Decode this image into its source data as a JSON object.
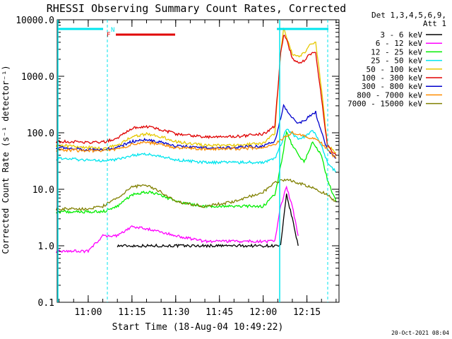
{
  "chart_data": {
    "type": "line",
    "title": "RHESSI Observing Summary Count Rates, Corrected",
    "xlabel": "Start Time (18-Aug-04 10:49:22)",
    "ylabel": "Corrected Count Rate (s⁻¹ detector⁻¹)",
    "y_scale": "log",
    "ylim": [
      0.1,
      10000
    ],
    "xlim": [
      "10:49:22",
      "12:26:00"
    ],
    "y_ticks": [
      "0.1",
      "1.0",
      "10.0",
      "100.0",
      "1000.0",
      "10000.0"
    ],
    "x_ticks": [
      "11:00",
      "11:15",
      "11:30",
      "11:45",
      "12:00",
      "12:15"
    ],
    "legend_title_line1": "Det 1,3,4,5,6,9,",
    "legend_title_line2": "Att 1",
    "legend_position": "right",
    "footer_timestamp": "20-Oct-2021 08:04",
    "flags": [
      {
        "label": "N",
        "color": "#00e5ee"
      },
      {
        "label": "F",
        "color": "#e00000"
      }
    ],
    "series": [
      {
        "name": "3 - 6 keV",
        "color": "#000000",
        "x": [
          "11:10",
          "11:18",
          "11:24",
          "11:31",
          "11:46",
          "12:06",
          "12:08",
          "12:10",
          "12:12"
        ],
        "y": [
          1,
          1,
          1,
          1,
          1,
          1,
          8,
          3,
          1
        ]
      },
      {
        "name": "6 - 12 keV",
        "color": "#ff00ff",
        "x": [
          "10:49",
          "11:00",
          "11:05",
          "11:10",
          "11:15",
          "11:20",
          "11:30",
          "11:40",
          "11:50",
          "12:00",
          "12:04",
          "12:06",
          "12:08",
          "12:10",
          "12:12"
        ],
        "y": [
          0.8,
          0.8,
          1.5,
          1.5,
          2.2,
          2.0,
          1.5,
          1.2,
          1.2,
          1.2,
          1.2,
          5,
          11,
          5,
          1.5
        ]
      },
      {
        "name": "12 - 25 keV",
        "color": "#00ee00",
        "x": [
          "10:49",
          "11:00",
          "11:05",
          "11:10",
          "11:15",
          "11:20",
          "11:25",
          "11:30",
          "11:40",
          "11:50",
          "12:00",
          "12:04",
          "12:06",
          "12:08",
          "12:10",
          "12:14",
          "12:17",
          "12:20",
          "12:22",
          "12:25"
        ],
        "y": [
          4,
          4,
          4,
          5,
          8,
          9,
          8,
          6,
          5,
          5,
          5,
          8,
          25,
          100,
          60,
          30,
          70,
          40,
          15,
          6
        ]
      },
      {
        "name": "25 - 50 keV",
        "color": "#00e5ee",
        "x": [
          "10:49",
          "11:00",
          "11:05",
          "11:10",
          "11:15",
          "11:20",
          "11:25",
          "11:30",
          "11:40",
          "11:50",
          "12:00",
          "12:04",
          "12:06",
          "12:08",
          "12:10",
          "12:12",
          "12:14",
          "12:17",
          "12:20",
          "12:22",
          "12:25"
        ],
        "y": [
          35,
          33,
          32,
          34,
          40,
          42,
          38,
          33,
          30,
          30,
          30,
          35,
          60,
          120,
          95,
          80,
          85,
          110,
          60,
          30,
          20
        ]
      },
      {
        "name": "50 - 100 keV",
        "color": "#e6c800",
        "x": [
          "10:49",
          "11:00",
          "11:05",
          "11:10",
          "11:15",
          "11:20",
          "11:25",
          "11:30",
          "11:40",
          "11:50",
          "12:00",
          "12:04",
          "12:06",
          "12:07",
          "12:08",
          "12:10",
          "12:12",
          "12:14",
          "12:16",
          "12:18",
          "12:20",
          "12:22",
          "12:25"
        ],
        "y": [
          60,
          55,
          52,
          60,
          85,
          95,
          85,
          70,
          60,
          60,
          65,
          100,
          2500,
          7000,
          5000,
          2500,
          2200,
          2600,
          3500,
          4000,
          600,
          60,
          45
        ]
      },
      {
        "name": "100 - 300 keV",
        "color": "#e00000",
        "x": [
          "10:49",
          "11:00",
          "11:05",
          "11:10",
          "11:15",
          "11:20",
          "11:25",
          "11:30",
          "11:40",
          "11:50",
          "12:00",
          "12:04",
          "12:06",
          "12:07",
          "12:08",
          "12:10",
          "12:12",
          "12:14",
          "12:16",
          "12:18",
          "12:20",
          "12:22",
          "12:25"
        ],
        "y": [
          70,
          68,
          68,
          80,
          120,
          130,
          115,
          95,
          85,
          85,
          95,
          130,
          2500,
          5500,
          4500,
          2100,
          1700,
          1900,
          2500,
          2700,
          400,
          60,
          40
        ]
      },
      {
        "name": "300 - 800 keV",
        "color": "#0000cc",
        "x": [
          "10:49",
          "11:00",
          "11:05",
          "11:10",
          "11:15",
          "11:20",
          "11:25",
          "11:30",
          "11:40",
          "11:50",
          "12:00",
          "12:04",
          "12:06",
          "12:07",
          "12:08",
          "12:10",
          "12:12",
          "12:14",
          "12:16",
          "12:18",
          "12:20",
          "12:22",
          "12:25"
        ],
        "y": [
          55,
          50,
          50,
          55,
          70,
          75,
          68,
          58,
          55,
          55,
          58,
          70,
          180,
          300,
          250,
          180,
          150,
          160,
          200,
          230,
          100,
          50,
          35
        ]
      },
      {
        "name": "800 - 7000 keV",
        "color": "#ff8c00",
        "x": [
          "10:49",
          "11:00",
          "11:05",
          "11:10",
          "11:15",
          "11:20",
          "11:25",
          "11:30",
          "11:40",
          "11:50",
          "12:00",
          "12:04",
          "12:06",
          "12:08",
          "12:10",
          "12:14",
          "12:18",
          "12:20",
          "12:22",
          "12:25"
        ],
        "y": [
          50,
          48,
          48,
          52,
          62,
          68,
          62,
          54,
          52,
          52,
          55,
          62,
          75,
          90,
          100,
          90,
          75,
          65,
          50,
          35
        ]
      },
      {
        "name": "7000 - 15000 keV",
        "color": "#808000",
        "x": [
          "10:49",
          "11:00",
          "11:05",
          "11:10",
          "11:15",
          "11:20",
          "11:25",
          "11:30",
          "11:40",
          "11:50",
          "12:00",
          "12:04",
          "12:08",
          "12:10",
          "12:14",
          "12:18",
          "12:22",
          "12:25"
        ],
        "y": [
          4.5,
          4.5,
          5,
          7,
          11,
          12,
          9,
          6,
          5,
          6,
          9,
          13,
          15,
          14,
          12,
          10,
          8,
          6
        ]
      }
    ]
  }
}
